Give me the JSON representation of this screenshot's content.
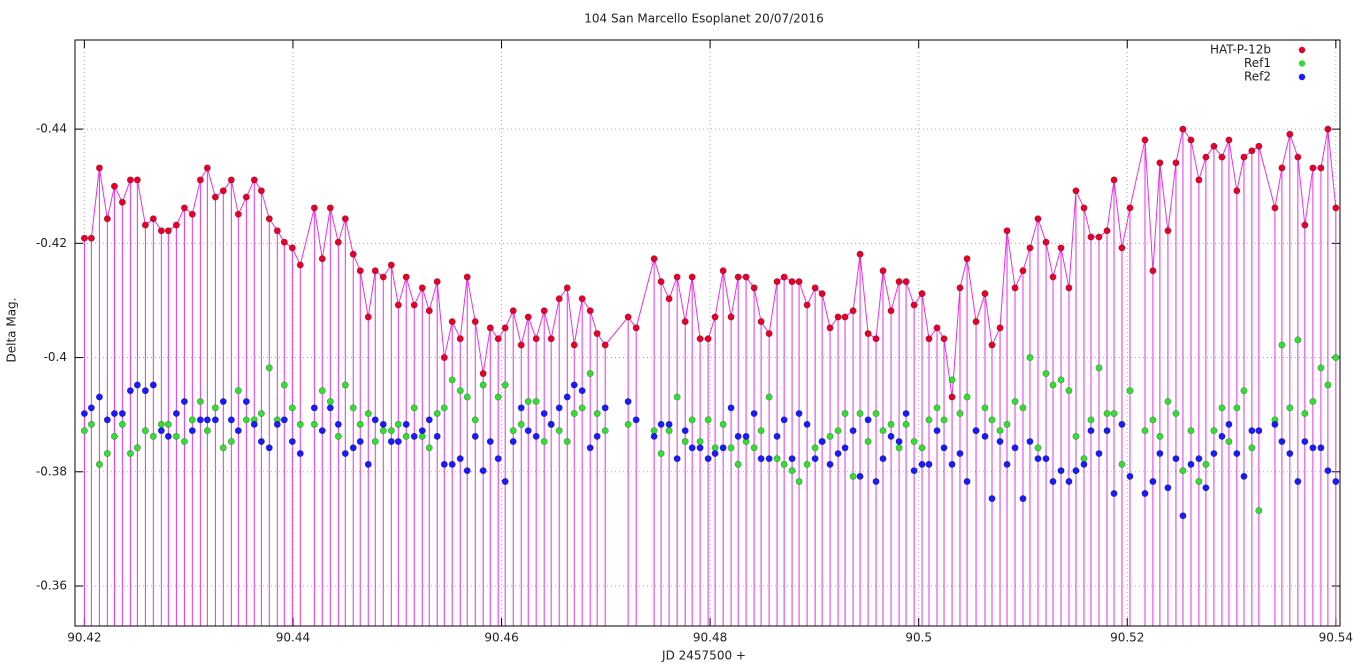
{
  "chart_data": {
    "type": "scatter",
    "title": "104 San Marcello Esoplanet 20/07/2016",
    "x_label": "JD 2457500 +",
    "y_label": "Delta Mag.",
    "xlim": [
      90.4191,
      90.5404
    ],
    "xticks": [
      90.42,
      90.44,
      90.46,
      90.48,
      90.5,
      90.52,
      90.54
    ],
    "ylim": [
      -0.353,
      -0.4556
    ],
    "yticks": [
      -0.44,
      -0.42,
      -0.4,
      -0.38,
      -0.36
    ],
    "grid": true,
    "legend": "upper right",
    "x": [
      90.42,
      90.42067,
      90.42144,
      90.4222,
      90.42288,
      90.42364,
      90.42441,
      90.42508,
      90.42585,
      90.42661,
      90.42738,
      90.42805,
      90.42882,
      90.42959,
      90.43035,
      90.43112,
      90.43179,
      90.43256,
      90.43332,
      90.43409,
      90.43476,
      90.43553,
      90.43629,
      90.43697,
      90.43773,
      90.4385,
      90.43917,
      90.43994,
      90.4407,
      90.44205,
      90.44281,
      90.44358,
      90.44435,
      90.44502,
      90.44578,
      90.44645,
      90.44722,
      90.44789,
      90.44866,
      90.44943,
      90.4501,
      90.45086,
      90.45163,
      90.4524,
      90.45307,
      90.45383,
      90.45451,
      90.45527,
      90.45604,
      90.45671,
      90.45748,
      90.45824,
      90.45892,
      90.45968,
      90.46035,
      90.46112,
      90.46189,
      90.46256,
      90.46332,
      90.46409,
      90.46476,
      90.46553,
      90.4663,
      90.46697,
      90.46773,
      90.4685,
      90.46917,
      90.46994,
      90.47214,
      90.47291,
      90.47463,
      90.4753,
      90.47607,
      90.47684,
      90.47761,
      90.47828,
      90.47904,
      90.47981,
      90.48048,
      90.48125,
      90.48201,
      90.48269,
      90.48345,
      90.48422,
      90.48489,
      90.48566,
      90.48642,
      90.4871,
      90.48786,
      90.48853,
      90.4893,
      90.49007,
      90.49074,
      90.4915,
      90.49227,
      90.49294,
      90.49371,
      90.49438,
      90.49515,
      90.49591,
      90.49658,
      90.49735,
      90.49812,
      90.49879,
      90.49956,
      90.50032,
      90.50099,
      90.50176,
      90.50243,
      90.5032,
      90.50396,
      90.50464,
      90.5055,
      90.50636,
      90.50703,
      90.5078,
      90.50847,
      90.50924,
      90.51,
      90.51067,
      90.51144,
      90.51221,
      90.51288,
      90.51365,
      90.51441,
      90.51508,
      90.51585,
      90.51652,
      90.51729,
      90.51806,
      90.51873,
      90.51949,
      90.52026,
      90.5217,
      90.52246,
      90.52313,
      90.5239,
      90.52467,
      90.52534,
      90.52611,
      90.52687,
      90.52754,
      90.52831,
      90.52908,
      90.52975,
      90.53051,
      90.53119,
      90.53195,
      90.53262,
      90.53416,
      90.53483,
      90.53559,
      90.53636,
      90.53703,
      90.5378,
      90.53857,
      90.53924,
      90.54
    ],
    "series": [
      {
        "name": "HAT-P-12b",
        "color": "#e8002a",
        "line_color": "#e830e8",
        "impulses": true,
        "line": true,
        "values": [
          -0.4209,
          -0.4209,
          -0.4332,
          -0.4243,
          -0.43,
          -0.4272,
          -0.4311,
          -0.4311,
          -0.4232,
          -0.4243,
          -0.4222,
          -0.4222,
          -0.4232,
          -0.4262,
          -0.4251,
          -0.4311,
          -0.4332,
          -0.4281,
          -0.4292,
          -0.4311,
          -0.4251,
          -0.4281,
          -0.4311,
          -0.4292,
          -0.4243,
          -0.4222,
          -0.4202,
          -0.4192,
          -0.4162,
          -0.4262,
          -0.4173,
          -0.4262,
          -0.4202,
          -0.4243,
          -0.4181,
          -0.4152,
          -0.4071,
          -0.4152,
          -0.4141,
          -0.4162,
          -0.4092,
          -0.4141,
          -0.4092,
          -0.4122,
          -0.4082,
          -0.4133,
          -0.4,
          -0.4063,
          -0.4033,
          -0.4141,
          -0.4063,
          -0.3972,
          -0.4052,
          -0.4033,
          -0.4052,
          -0.4082,
          -0.4022,
          -0.4071,
          -0.4033,
          -0.4082,
          -0.4033,
          -0.4103,
          -0.4122,
          -0.4022,
          -0.4103,
          -0.4082,
          -0.4042,
          -0.4022,
          -0.4071,
          -0.4052,
          -0.4173,
          -0.4133,
          -0.4103,
          -0.4141,
          -0.4063,
          -0.4141,
          -0.4033,
          -0.4033,
          -0.4071,
          -0.4152,
          -0.4071,
          -0.4141,
          -0.4141,
          -0.4122,
          -0.4063,
          -0.4042,
          -0.4133,
          -0.4141,
          -0.4133,
          -0.4133,
          -0.4092,
          -0.4122,
          -0.4112,
          -0.4052,
          -0.4071,
          -0.4071,
          -0.4082,
          -0.4181,
          -0.4042,
          -0.4033,
          -0.4152,
          -0.4082,
          -0.4133,
          -0.4133,
          -0.4092,
          -0.4112,
          -0.4033,
          -0.4052,
          -0.4033,
          -0.3931,
          -0.4122,
          -0.4173,
          -0.4063,
          -0.4112,
          -0.4022,
          -0.4052,
          -0.4222,
          -0.4122,
          -0.4152,
          -0.4192,
          -0.4243,
          -0.4202,
          -0.4141,
          -0.4192,
          -0.4122,
          -0.4292,
          -0.4262,
          -0.4211,
          -0.4211,
          -0.4222,
          -0.4311,
          -0.4192,
          -0.4262,
          -0.4381,
          -0.4152,
          -0.4341,
          -0.4222,
          -0.4341,
          -0.44,
          -0.4381,
          -0.4311,
          -0.4351,
          -0.437,
          -0.4351,
          -0.4381,
          -0.4292,
          -0.4351,
          -0.4362,
          -0.437,
          -0.4262,
          -0.4332,
          -0.4391,
          -0.4351,
          -0.4232,
          -0.4332,
          -0.4332,
          -0.44,
          -0.4262
        ]
      },
      {
        "name": "Ref1",
        "color": "#33dd33",
        "values": [
          -0.3872,
          -0.3883,
          -0.3813,
          -0.3832,
          -0.3862,
          -0.3883,
          -0.3832,
          -0.3842,
          -0.3872,
          -0.3862,
          -0.3883,
          -0.3883,
          -0.3862,
          -0.3853,
          -0.3891,
          -0.3923,
          -0.3872,
          -0.3912,
          -0.3842,
          -0.3853,
          -0.3942,
          -0.3891,
          -0.3891,
          -0.3902,
          -0.3982,
          -0.3891,
          -0.3952,
          -0.3912,
          -0.3883,
          -0.3883,
          -0.3942,
          -0.3923,
          -0.3862,
          -0.3952,
          -0.3912,
          -0.3883,
          -0.3902,
          -0.3853,
          -0.3872,
          -0.3872,
          -0.3883,
          -0.3862,
          -0.3912,
          -0.3862,
          -0.3842,
          -0.3902,
          -0.3912,
          -0.3961,
          -0.3942,
          -0.3931,
          -0.3891,
          -0.3952,
          null,
          -0.3931,
          -0.3952,
          -0.3872,
          -0.3883,
          -0.3923,
          -0.3923,
          -0.3853,
          -0.3883,
          -0.3872,
          -0.3853,
          -0.3902,
          -0.3912,
          -0.3972,
          -0.3902,
          -0.3872,
          -0.3883,
          null,
          -0.3872,
          -0.3832,
          -0.3872,
          -0.3931,
          -0.3853,
          -0.3891,
          -0.3853,
          -0.3891,
          -0.3842,
          -0.3883,
          -0.3842,
          -0.3813,
          -0.3853,
          -0.3842,
          -0.3872,
          -0.3931,
          -0.3823,
          -0.3813,
          -0.3802,
          -0.3783,
          -0.3813,
          -0.3842,
          -0.3853,
          -0.3862,
          -0.3872,
          -0.3902,
          -0.3792,
          -0.3902,
          -0.3853,
          -0.3902,
          -0.3872,
          -0.3883,
          -0.3842,
          -0.3883,
          -0.3853,
          -0.3842,
          -0.3891,
          -0.3912,
          -0.3891,
          -0.3961,
          -0.3902,
          -0.3931,
          -0.3872,
          -0.3912,
          -0.3891,
          -0.3872,
          -0.3883,
          -0.3923,
          -0.3912,
          -0.4,
          -0.3842,
          -0.3972,
          -0.3952,
          -0.3961,
          -0.3942,
          -0.3862,
          -0.3823,
          -0.3891,
          -0.3982,
          -0.3902,
          -0.3902,
          -0.3813,
          -0.3942,
          -0.3872,
          -0.3891,
          -0.3862,
          -0.3923,
          -0.3902,
          -0.3802,
          -0.3872,
          -0.3783,
          -0.3813,
          -0.3872,
          -0.3912,
          -0.3853,
          -0.3912,
          -0.3942,
          -0.3842,
          -0.3732,
          -0.3891,
          -0.4022,
          -0.3912,
          -0.4031,
          -0.3902,
          -0.3923,
          -0.3982,
          -0.3952,
          -0.4
        ]
      },
      {
        "name": "Ref2",
        "color": "#1a1aff",
        "values": [
          -0.3902,
          -0.3912,
          -0.3931,
          -0.3891,
          -0.3902,
          -0.3902,
          -0.3942,
          -0.3952,
          -0.3942,
          -0.3952,
          -0.3872,
          -0.3862,
          -0.3902,
          -0.3923,
          -0.3872,
          -0.3891,
          -0.3891,
          -0.3891,
          -0.3923,
          -0.3891,
          -0.3872,
          -0.3923,
          -0.3883,
          -0.3853,
          -0.3842,
          -0.3883,
          -0.3891,
          -0.3853,
          -0.3832,
          -0.3912,
          -0.3872,
          -0.3912,
          -0.3883,
          -0.3832,
          -0.3842,
          -0.3853,
          -0.3813,
          -0.3891,
          -0.3883,
          -0.3853,
          -0.3853,
          -0.3883,
          -0.3862,
          -0.3872,
          -0.3891,
          -0.3862,
          -0.3813,
          -0.3813,
          -0.3823,
          -0.3802,
          -0.3862,
          -0.3802,
          -0.3853,
          -0.3823,
          -0.3783,
          -0.3853,
          -0.3912,
          -0.3872,
          -0.3862,
          -0.3902,
          -0.3883,
          -0.3912,
          -0.3931,
          -0.3952,
          -0.3942,
          -0.3842,
          -0.3862,
          -0.3912,
          -0.3923,
          -0.3891,
          -0.3862,
          -0.3883,
          -0.3883,
          -0.3823,
          -0.3872,
          -0.3842,
          -0.3842,
          -0.3823,
          -0.3832,
          -0.3842,
          -0.3912,
          -0.3862,
          -0.3862,
          -0.3902,
          -0.3823,
          -0.3823,
          -0.3862,
          -0.3891,
          -0.3823,
          -0.3902,
          -0.3883,
          -0.3823,
          -0.3853,
          -0.3813,
          -0.3832,
          -0.3842,
          -0.3872,
          -0.3792,
          -0.3891,
          -0.3783,
          -0.3823,
          -0.3862,
          -0.3853,
          -0.3902,
          -0.3802,
          -0.3813,
          -0.3813,
          -0.3872,
          -0.3842,
          -0.3813,
          -0.3832,
          -0.3783,
          -0.3872,
          -0.3862,
          -0.3753,
          -0.3853,
          -0.3813,
          -0.3842,
          -0.3753,
          -0.3853,
          -0.3823,
          -0.3823,
          -0.3783,
          -0.3802,
          -0.3783,
          -0.3802,
          -0.3813,
          -0.3872,
          -0.3832,
          -0.3872,
          -0.3762,
          -0.3883,
          -0.3792,
          -0.3762,
          -0.3783,
          -0.3832,
          -0.3772,
          -0.3823,
          -0.3723,
          -0.3813,
          -0.3823,
          -0.3772,
          -0.3832,
          -0.3862,
          -0.3883,
          -0.3832,
          -0.3792,
          -0.3872,
          -0.3872,
          -0.3883,
          -0.3853,
          -0.3832,
          -0.3783,
          -0.3853,
          -0.3842,
          -0.3842,
          -0.3802,
          -0.3783
        ]
      }
    ]
  }
}
